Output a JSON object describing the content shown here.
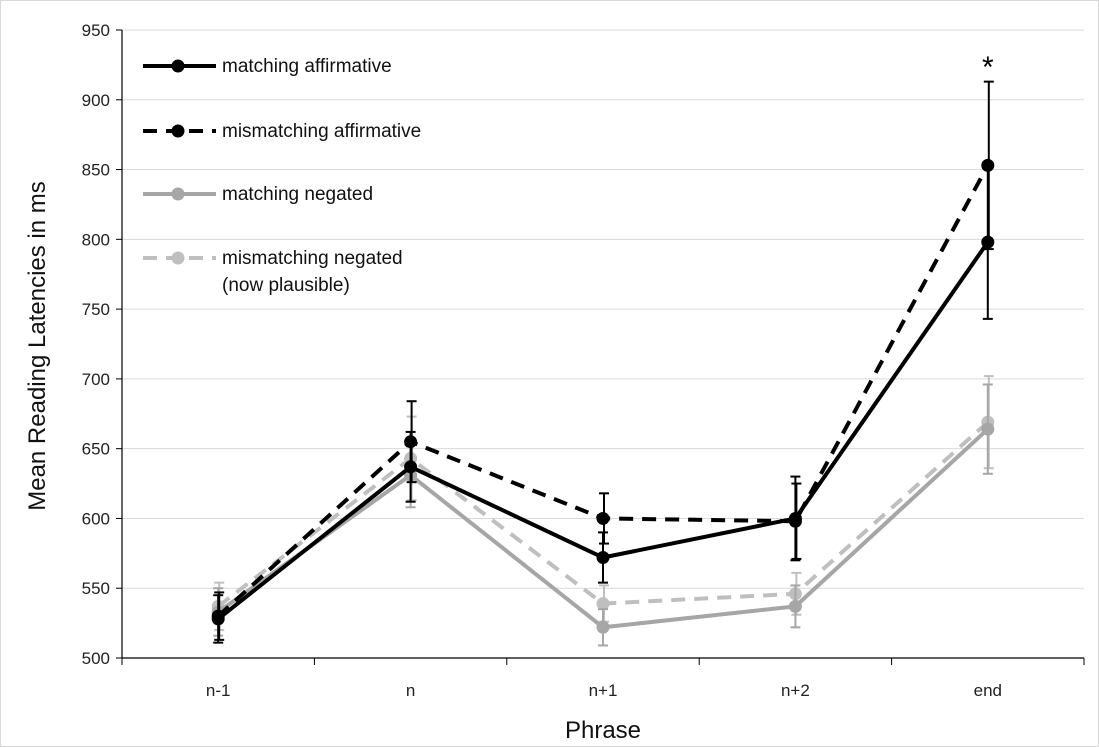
{
  "chart_data": {
    "type": "line",
    "title": "",
    "xlabel": "Phrase",
    "ylabel": "Mean Reading Latencies in ms",
    "categories": [
      "n-1",
      "n",
      "n+1",
      "n+2",
      "end"
    ],
    "ylim": [
      500,
      950
    ],
    "yticks": [
      500,
      550,
      600,
      650,
      700,
      750,
      800,
      850,
      900,
      950
    ],
    "grid": true,
    "legend_position": "top-left",
    "annotations": [
      {
        "text": "*",
        "category": "end",
        "y": 925
      }
    ],
    "series": [
      {
        "name": "matching affirmative",
        "color": "#000000",
        "dashed": false,
        "values": [
          528,
          637,
          572,
          600,
          798
        ],
        "error": [
          17,
          25,
          18,
          30,
          55
        ]
      },
      {
        "name": "mismatching affirmative",
        "color": "#000000",
        "dashed": true,
        "values": [
          530,
          655,
          600,
          598,
          853
        ],
        "error": [
          17,
          29,
          18,
          27,
          60
        ]
      },
      {
        "name": "matching negated",
        "color": "#a6a6a6",
        "dashed": false,
        "values": [
          533,
          631,
          522,
          537,
          664
        ],
        "error": [
          17,
          23,
          13,
          15,
          32
        ]
      },
      {
        "name": "mismatching negated",
        "name_line2": "(now plausible)",
        "color": "#bfbfbf",
        "dashed": true,
        "values": [
          537,
          643,
          539,
          546,
          669
        ],
        "error": [
          17,
          30,
          13,
          15,
          33
        ]
      }
    ]
  }
}
